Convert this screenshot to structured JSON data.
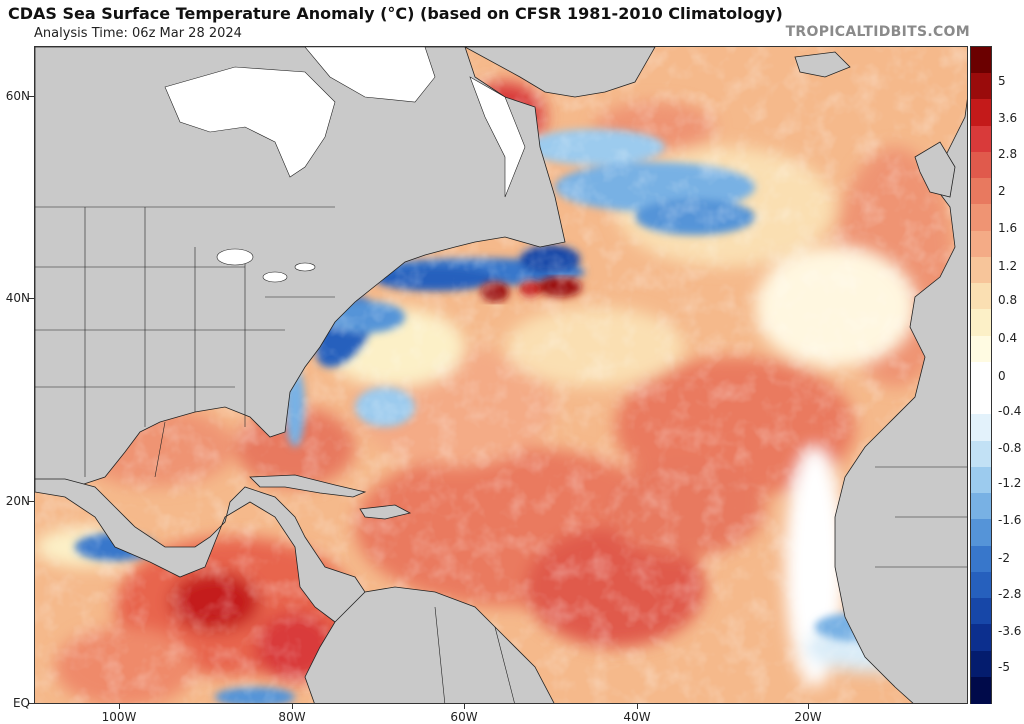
{
  "title": "CDAS Sea Surface Temperature Anomaly (°C) (based on CFSR 1981-2010 Climatology)",
  "subtitle": "Analysis Time: 06z Mar 28 2024",
  "credit": "TROPICALTIDBITS.COM",
  "lat_labels": [
    "60N",
    "40N",
    "20N",
    "EQ"
  ],
  "lon_labels": [
    "100W",
    "80W",
    "60W",
    "40W",
    "20W"
  ],
  "colorbar": {
    "labels": [
      "5",
      "3.6",
      "2.8",
      "2",
      "1.6",
      "1.2",
      "0.8",
      "0.4",
      "0",
      "-0.4",
      "-0.8",
      "-1.2",
      "-1.6",
      "-2",
      "-2.8",
      "-3.6",
      "-5"
    ],
    "colors": [
      "#6b0000",
      "#9a0b0b",
      "#c41a1a",
      "#d93a3a",
      "#e05a4c",
      "#e8795f",
      "#ef9473",
      "#f4ab86",
      "#f7c59a",
      "#fadfb2",
      "#fcf0c7",
      "#fffbe2",
      "#ffffff",
      "#ffffff",
      "#e3f2fb",
      "#c2e1f5",
      "#9ccbee",
      "#78b1e4",
      "#5594d8",
      "#3877cb",
      "#2660bd",
      "#1747a8",
      "#0c2f8e",
      "#041c6e",
      "#000a4a"
    ]
  },
  "colors": {
    "land": "#c9c9c9",
    "ocean_base": "#f5b98b",
    "frame": "#333333"
  }
}
